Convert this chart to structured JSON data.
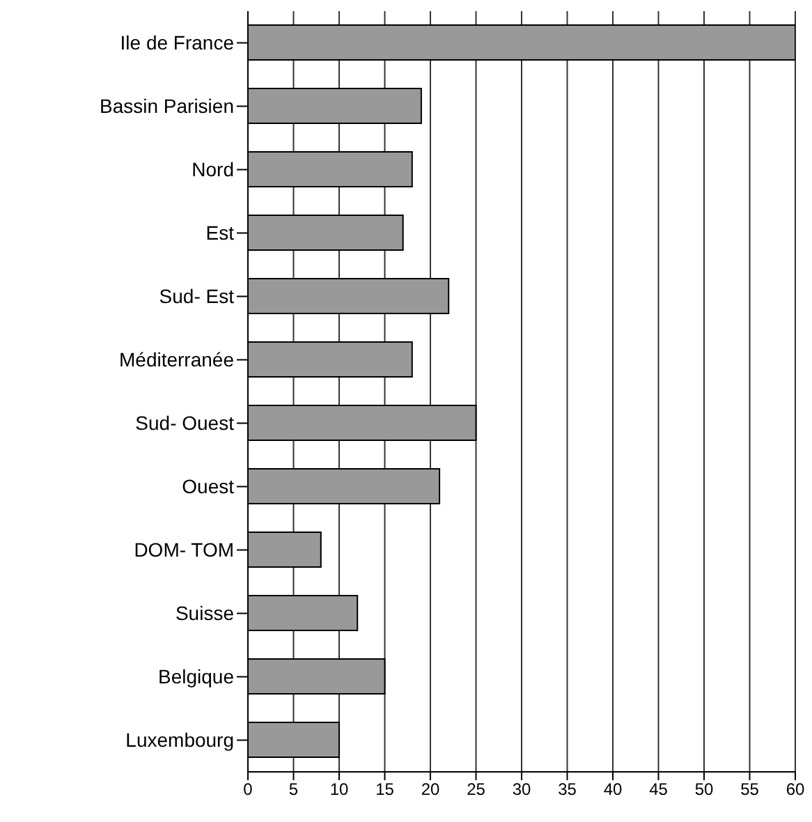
{
  "chart_data": {
    "type": "bar",
    "orientation": "horizontal",
    "categories": [
      "Ile de France",
      "Bassin Parisien",
      "Nord",
      "Est",
      "Sud- Est",
      "Méditerranée",
      "Sud- Ouest",
      "Ouest",
      "DOM- TOM",
      "Suisse",
      "Belgique",
      "Luxembourg"
    ],
    "values": [
      60,
      19,
      18,
      17,
      22,
      18,
      25,
      21,
      8,
      12,
      15,
      10
    ],
    "color": "#999999",
    "xlim": [
      0,
      60
    ],
    "xticks": [
      0,
      5,
      10,
      15,
      20,
      25,
      30,
      35,
      40,
      45,
      50,
      55,
      60
    ],
    "grid": "x"
  }
}
